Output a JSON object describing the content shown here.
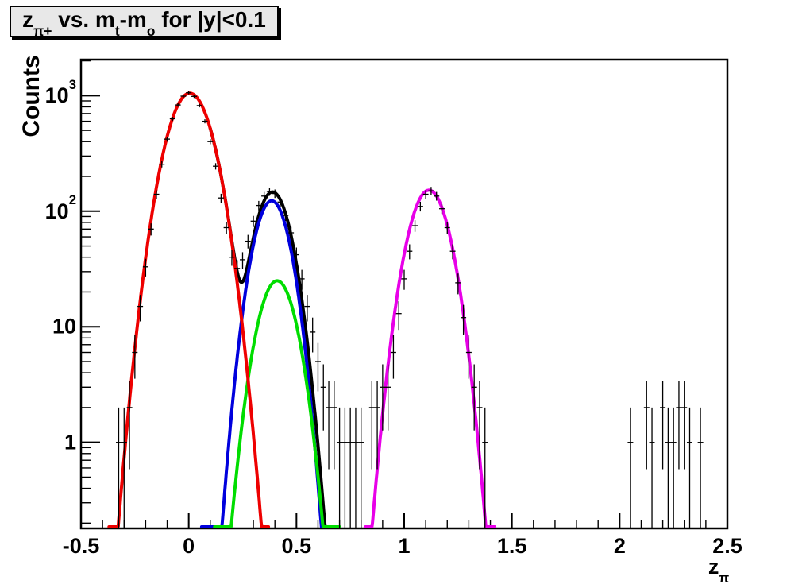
{
  "page": {
    "background": "#ffffff",
    "frame_color": "#000000",
    "title_box_fill": "#e8e8e8"
  },
  "chart_data": {
    "type": "line",
    "subtype": "histogram-with-gaussian-fits",
    "title_parts": [
      {
        "t": "z"
      },
      {
        "s": "π+"
      },
      {
        "t": " vs. m"
      },
      {
        "s": "t"
      },
      {
        "t": "-m"
      },
      {
        "s": "o"
      },
      {
        "t": " for |y|<0.1"
      }
    ],
    "title_plain": "z_π+ vs. m_t-m_o for |y|<0.1",
    "ylabel": "Counts",
    "xlabel_parts": [
      {
        "t": "z"
      },
      {
        "s": "π"
      }
    ],
    "xlabel_plain": "z_π",
    "x_range": [
      -0.5,
      2.5
    ],
    "y_log_range": [
      0.18,
      2050
    ],
    "grid": "off",
    "legend": "none",
    "x_major_ticks": [
      {
        "v": -0.5,
        "label": "-0.5"
      },
      {
        "v": 0,
        "label": "0"
      },
      {
        "v": 0.5,
        "label": "0.5"
      },
      {
        "v": 1,
        "label": "1"
      },
      {
        "v": 1.5,
        "label": "1.5"
      },
      {
        "v": 2,
        "label": "2"
      },
      {
        "v": 2.5,
        "label": "2.5"
      }
    ],
    "x_minor_step": 0.1,
    "y_major_ticks": [
      {
        "v": 1,
        "base": "1",
        "exp": ""
      },
      {
        "v": 10,
        "base": "10",
        "exp": ""
      },
      {
        "v": 100,
        "base": "10",
        "exp": "2"
      },
      {
        "v": 1000,
        "base": "10",
        "exp": "3"
      }
    ],
    "curves": [
      {
        "name": "total-fit",
        "color": "#000000",
        "type": "sum",
        "components": [
          "gauss-red",
          "gauss-blue",
          "gauss-green"
        ],
        "range": [
          0.1,
          0.68
        ]
      },
      {
        "name": "gauss-blue",
        "color": "#0000dd",
        "type": "gauss",
        "A": 123,
        "mu": 0.385,
        "sigma": 0.064,
        "range": [
          0.06,
          0.67
        ]
      },
      {
        "name": "gauss-green",
        "color": "#00dd00",
        "type": "gauss",
        "A": 25,
        "mu": 0.41,
        "sigma": 0.068,
        "range": [
          0.12,
          0.7
        ]
      },
      {
        "name": "gauss-red",
        "color": "#ee0000",
        "type": "gauss",
        "A": 1050,
        "mu": 0.005,
        "sigma": 0.08,
        "range": [
          -0.37,
          0.37
        ]
      },
      {
        "name": "gauss-magenta",
        "color": "#e800e8",
        "type": "gauss",
        "A": 152,
        "mu": 1.115,
        "sigma": 0.072,
        "range": [
          0.82,
          1.42
        ]
      }
    ],
    "points_note": "data histogram bin centers (z) and counts; error bars are sqrt(N), Poisson",
    "points": [
      [
        -0.325,
        1
      ],
      [
        -0.3,
        1
      ],
      [
        -0.275,
        2
      ],
      [
        -0.25,
        6
      ],
      [
        -0.225,
        15
      ],
      [
        -0.2,
        33
      ],
      [
        -0.175,
        70
      ],
      [
        -0.15,
        140
      ],
      [
        -0.125,
        255
      ],
      [
        -0.1,
        420
      ],
      [
        -0.075,
        630
      ],
      [
        -0.05,
        830
      ],
      [
        -0.025,
        990
      ],
      [
        0,
        1060
      ],
      [
        0.025,
        985
      ],
      [
        0.05,
        820
      ],
      [
        0.075,
        600
      ],
      [
        0.1,
        400
      ],
      [
        0.125,
        245
      ],
      [
        0.15,
        130
      ],
      [
        0.175,
        72
      ],
      [
        0.2,
        40
      ],
      [
        0.225,
        32
      ],
      [
        0.25,
        38
      ],
      [
        0.275,
        55
      ],
      [
        0.3,
        82
      ],
      [
        0.325,
        112
      ],
      [
        0.35,
        135
      ],
      [
        0.375,
        148
      ],
      [
        0.4,
        142
      ],
      [
        0.425,
        120
      ],
      [
        0.45,
        92
      ],
      [
        0.475,
        65
      ],
      [
        0.5,
        42
      ],
      [
        0.525,
        26
      ],
      [
        0.55,
        15
      ],
      [
        0.575,
        9
      ],
      [
        0.6,
        5
      ],
      [
        0.625,
        3
      ],
      [
        0.65,
        2
      ],
      [
        0.675,
        2
      ],
      [
        0.7,
        1
      ],
      [
        0.725,
        1
      ],
      [
        0.75,
        1
      ],
      [
        0.775,
        1
      ],
      [
        0.8,
        1
      ],
      [
        0.85,
        2
      ],
      [
        0.875,
        2
      ],
      [
        0.9,
        3
      ],
      [
        0.925,
        3
      ],
      [
        0.95,
        6
      ],
      [
        0.975,
        13
      ],
      [
        1,
        26
      ],
      [
        1.025,
        45
      ],
      [
        1.05,
        75
      ],
      [
        1.075,
        110
      ],
      [
        1.1,
        140
      ],
      [
        1.125,
        150
      ],
      [
        1.15,
        135
      ],
      [
        1.175,
        105
      ],
      [
        1.2,
        72
      ],
      [
        1.225,
        45
      ],
      [
        1.25,
        24
      ],
      [
        1.275,
        12
      ],
      [
        1.3,
        6
      ],
      [
        1.325,
        3
      ],
      [
        1.35,
        2
      ],
      [
        1.375,
        1
      ],
      [
        2.05,
        1
      ],
      [
        2.125,
        2
      ],
      [
        2.15,
        1
      ],
      [
        2.2,
        2
      ],
      [
        2.225,
        1
      ],
      [
        2.25,
        1
      ],
      [
        2.275,
        2
      ],
      [
        2.3,
        2
      ],
      [
        2.325,
        1
      ],
      [
        2.375,
        1
      ]
    ]
  }
}
